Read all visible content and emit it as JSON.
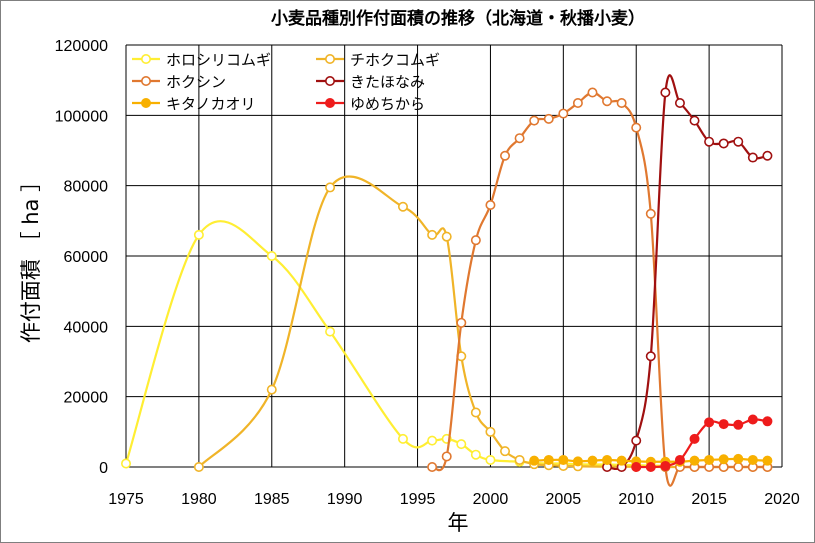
{
  "chart_data": {
    "type": "line",
    "title": "小麦品種別作付面積の推移（北海道・秋播小麦）",
    "xlabel": "年",
    "ylabel": "作付面積 ［ ha ］",
    "xlim": [
      1975,
      2020
    ],
    "ylim": [
      0,
      120000
    ],
    "x_ticks": [
      1975,
      1980,
      1985,
      1990,
      1995,
      2000,
      2005,
      2010,
      2015,
      2020
    ],
    "y_ticks": [
      0,
      20000,
      40000,
      60000,
      80000,
      100000,
      120000
    ],
    "grid": true,
    "legend": "top-left",
    "series": [
      {
        "name": "ホロシリコムギ",
        "color": "#ffee33",
        "filled": false,
        "points": [
          [
            1975,
            1000
          ],
          [
            1980,
            66000
          ],
          [
            1985,
            60000
          ],
          [
            1989,
            38500
          ],
          [
            1994,
            8000
          ],
          [
            1996,
            7500
          ],
          [
            1997,
            8000
          ],
          [
            1998,
            6500
          ],
          [
            1999,
            3500
          ],
          [
            2000,
            2000
          ],
          [
            2002,
            1500
          ],
          [
            2003,
            1200
          ],
          [
            2004,
            1000
          ],
          [
            2005,
            1000
          ],
          [
            2006,
            800
          ],
          [
            2008,
            700
          ],
          [
            2010,
            500
          ],
          [
            2012,
            300
          ]
        ]
      },
      {
        "name": "チホクコムギ",
        "color": "#f0b428",
        "filled": false,
        "points": [
          [
            1980,
            0
          ],
          [
            1985,
            22000
          ],
          [
            1989,
            79500
          ],
          [
            1994,
            74000
          ],
          [
            1996,
            66000
          ],
          [
            1997,
            65500
          ],
          [
            1998,
            31500
          ],
          [
            1999,
            15500
          ],
          [
            2000,
            10000
          ],
          [
            2001,
            4500
          ],
          [
            2002,
            2000
          ],
          [
            2003,
            800
          ],
          [
            2004,
            500
          ],
          [
            2005,
            300
          ],
          [
            2006,
            200
          ],
          [
            2008,
            100
          ],
          [
            2010,
            50
          ],
          [
            2012,
            0
          ],
          [
            2014,
            0
          ],
          [
            2016,
            0
          ],
          [
            2018,
            0
          ],
          [
            2019,
            0
          ]
        ]
      },
      {
        "name": "ホクシン",
        "color": "#e07830",
        "filled": false,
        "points": [
          [
            1996,
            0
          ],
          [
            1997,
            3000
          ],
          [
            1998,
            41000
          ],
          [
            1999,
            64500
          ],
          [
            2000,
            74500
          ],
          [
            2001,
            88500
          ],
          [
            2002,
            93500
          ],
          [
            2003,
            98500
          ],
          [
            2004,
            99000
          ],
          [
            2005,
            100500
          ],
          [
            2006,
            103500
          ],
          [
            2007,
            106500
          ],
          [
            2008,
            104000
          ],
          [
            2009,
            103500
          ],
          [
            2010,
            96500
          ],
          [
            2011,
            72000
          ],
          [
            2012,
            0
          ],
          [
            2013,
            0
          ],
          [
            2014,
            0
          ],
          [
            2015,
            0
          ],
          [
            2016,
            0
          ],
          [
            2017,
            0
          ],
          [
            2018,
            0
          ],
          [
            2019,
            0
          ]
        ]
      },
      {
        "name": "きたほなみ",
        "color": "#a01010",
        "filled": false,
        "points": [
          [
            2008,
            0
          ],
          [
            2009,
            0
          ],
          [
            2010,
            7500
          ],
          [
            2011,
            31500
          ],
          [
            2012,
            106500
          ],
          [
            2013,
            103500
          ],
          [
            2014,
            98500
          ],
          [
            2015,
            92500
          ],
          [
            2016,
            92000
          ],
          [
            2017,
            92500
          ],
          [
            2018,
            88000
          ],
          [
            2019,
            88500
          ]
        ]
      },
      {
        "name": "キタノカオリ",
        "color": "#f8b000",
        "filled": true,
        "points": [
          [
            2003,
            1800
          ],
          [
            2004,
            2000
          ],
          [
            2005,
            2000
          ],
          [
            2006,
            1600
          ],
          [
            2007,
            1800
          ],
          [
            2008,
            2000
          ],
          [
            2009,
            1800
          ],
          [
            2010,
            1600
          ],
          [
            2011,
            1500
          ],
          [
            2012,
            1500
          ],
          [
            2013,
            1500
          ],
          [
            2014,
            1800
          ],
          [
            2015,
            2000
          ],
          [
            2016,
            2200
          ],
          [
            2017,
            2300
          ],
          [
            2018,
            2000
          ],
          [
            2019,
            1800
          ]
        ]
      },
      {
        "name": "ゆめちから",
        "color": "#ee1c1c",
        "filled": true,
        "points": [
          [
            2010,
            0
          ],
          [
            2011,
            0
          ],
          [
            2012,
            300
          ],
          [
            2013,
            2000
          ],
          [
            2014,
            8000
          ],
          [
            2015,
            12700
          ],
          [
            2016,
            12200
          ],
          [
            2017,
            12000
          ],
          [
            2018,
            13500
          ],
          [
            2019,
            13000
          ]
        ]
      }
    ]
  }
}
